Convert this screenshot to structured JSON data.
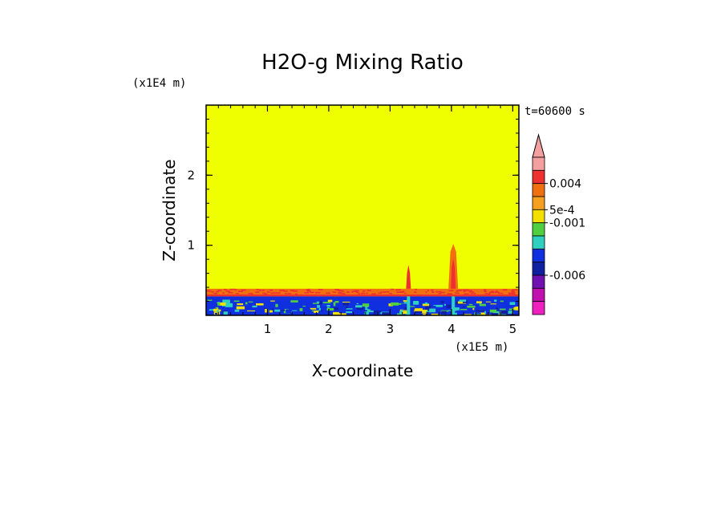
{
  "chart_data": {
    "type": "heatmap",
    "title": "H2O-g Mixing Ratio",
    "time_label": "t=60600 s",
    "xlabel": "X-coordinate",
    "ylabel": "Z-coordinate",
    "x_unit": "(x1E5 m)",
    "y_unit": "(x1E4 m)",
    "xlim": [
      0,
      5.1
    ],
    "ylim": [
      0,
      3.0
    ],
    "x_ticks": [
      {
        "value": 1,
        "label": "1"
      },
      {
        "value": 2,
        "label": "2"
      },
      {
        "value": 3,
        "label": "3"
      },
      {
        "value": 4,
        "label": "4"
      },
      {
        "value": 5,
        "label": "5"
      }
    ],
    "y_ticks": [
      {
        "value": 1,
        "label": "1"
      },
      {
        "value": 2,
        "label": "2"
      }
    ],
    "colorbar": {
      "colors_top_to_bottom": [
        "#f4a0a0",
        "#ee3030",
        "#f07010",
        "#f5a020",
        "#f4e000",
        "#50d040",
        "#30d0c0",
        "#1030e0",
        "#1020a0",
        "#7010b0",
        "#c010b0",
        "#f020c0"
      ],
      "labels": [
        {
          "label": "0.004",
          "level": 2
        },
        {
          "label": "5e-4",
          "level": 4
        },
        {
          "label": "-0.001",
          "level": 5
        },
        {
          "label": "-0.006",
          "level": 9
        }
      ],
      "extend_top": true
    },
    "field": {
      "background_color": "#f0ff00",
      "layers": [
        {
          "z_top": 0.38,
          "z_bottom": 0.3,
          "color": "#f07010"
        },
        {
          "z_top": 0.3,
          "z_bottom": 0.27,
          "color": "#ee3030"
        },
        {
          "z_top": 0.27,
          "z_bottom": 0.0,
          "color": "#1030e0"
        }
      ],
      "plumes": [
        {
          "x": 3.3,
          "z_top": 0.72,
          "color": "#ee3030"
        },
        {
          "x": 4.03,
          "z_top": 1.02,
          "color": "#f07010"
        }
      ]
    }
  }
}
